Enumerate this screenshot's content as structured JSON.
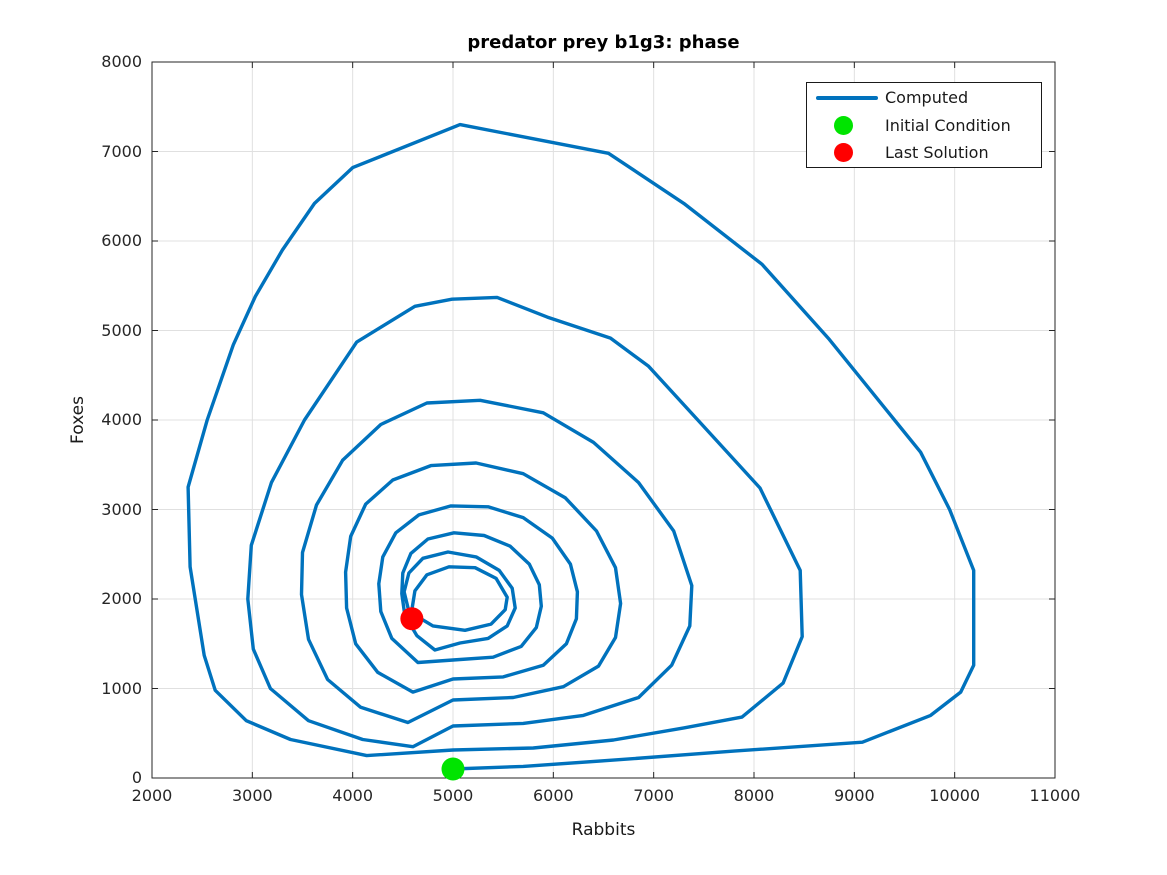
{
  "figure": {
    "background": "#ffffff"
  },
  "chart_data": {
    "type": "line",
    "subtype": "phase-portrait",
    "title": "predator prey b1g3: phase",
    "xlabel": "Rabbits",
    "ylabel": "Foxes",
    "xlim": [
      2000,
      11000
    ],
    "ylim": [
      0,
      8000
    ],
    "x_ticks": [
      2000,
      3000,
      4000,
      5000,
      6000,
      7000,
      8000,
      9000,
      10000,
      11000
    ],
    "x_tick_labels": [
      "2000",
      "3000",
      "4000",
      "5000",
      "6000",
      "7000",
      "8000",
      "9000",
      "10000",
      "11000"
    ],
    "y_ticks": [
      0,
      1000,
      2000,
      3000,
      4000,
      5000,
      6000,
      7000,
      8000
    ],
    "y_tick_labels": [
      "0",
      "1000",
      "2000",
      "3000",
      "4000",
      "5000",
      "6000",
      "7000",
      "8000"
    ],
    "grid": true,
    "grid_color": "#e0e0e0",
    "axis_color": "#262626",
    "legend": {
      "position": "top-right",
      "entries": [
        {
          "label": "Computed",
          "type": "line",
          "color": "#0072BD"
        },
        {
          "label": "Initial Condition",
          "type": "marker",
          "color": "#00E400"
        },
        {
          "label": "Last Solution",
          "type": "marker",
          "color": "#FF0000"
        }
      ]
    },
    "series": [
      {
        "name": "Computed",
        "color": "#0072BD",
        "line_width": 3.4,
        "points": [
          [
            5000,
            100
          ],
          [
            5700,
            130
          ],
          [
            6600,
            200
          ],
          [
            7800,
            300
          ],
          [
            9080,
            400
          ],
          [
            9760,
            700
          ],
          [
            10060,
            960
          ],
          [
            10190,
            1260
          ],
          [
            10190,
            2320
          ],
          [
            9950,
            3000
          ],
          [
            9660,
            3640
          ],
          [
            9400,
            4000
          ],
          [
            8750,
            4900
          ],
          [
            8080,
            5740
          ],
          [
            7300,
            6420
          ],
          [
            6550,
            6980
          ],
          [
            5070,
            7300
          ],
          [
            4000,
            6820
          ],
          [
            3620,
            6420
          ],
          [
            3300,
            5900
          ],
          [
            3030,
            5380
          ],
          [
            2810,
            4840
          ],
          [
            2550,
            4000
          ],
          [
            2360,
            3250
          ],
          [
            2380,
            2360
          ],
          [
            2520,
            1370
          ],
          [
            2630,
            980
          ],
          [
            2940,
            640
          ],
          [
            3380,
            430
          ],
          [
            4140,
            250
          ],
          [
            5000,
            313
          ],
          [
            5800,
            335
          ],
          [
            6600,
            425
          ],
          [
            7300,
            560
          ],
          [
            7880,
            680
          ],
          [
            8290,
            1060
          ],
          [
            8480,
            1580
          ],
          [
            8460,
            2320
          ],
          [
            8060,
            3240
          ],
          [
            7440,
            4000
          ],
          [
            6950,
            4600
          ],
          [
            6570,
            4915
          ],
          [
            5940,
            5150
          ],
          [
            5440,
            5370
          ],
          [
            4990,
            5350
          ],
          [
            4620,
            5270
          ],
          [
            4040,
            4870
          ],
          [
            3520,
            4000
          ],
          [
            3190,
            3300
          ],
          [
            2990,
            2600
          ],
          [
            2955,
            2000
          ],
          [
            3010,
            1440
          ],
          [
            3180,
            1000
          ],
          [
            3560,
            640
          ],
          [
            4100,
            430
          ],
          [
            4600,
            350
          ],
          [
            5000,
            581
          ],
          [
            5700,
            610
          ],
          [
            6300,
            700
          ],
          [
            6850,
            900
          ],
          [
            7180,
            1260
          ],
          [
            7360,
            1700
          ],
          [
            7380,
            2150
          ],
          [
            7200,
            2760
          ],
          [
            6850,
            3300
          ],
          [
            6400,
            3750
          ],
          [
            5900,
            4080
          ],
          [
            5270,
            4220
          ],
          [
            4740,
            4190
          ],
          [
            4280,
            3950
          ],
          [
            3900,
            3550
          ],
          [
            3640,
            3050
          ],
          [
            3500,
            2520
          ],
          [
            3490,
            2050
          ],
          [
            3560,
            1550
          ],
          [
            3750,
            1100
          ],
          [
            4080,
            790
          ],
          [
            4550,
            620
          ],
          [
            5000,
            871
          ],
          [
            5600,
            900
          ],
          [
            6100,
            1020
          ],
          [
            6450,
            1250
          ],
          [
            6620,
            1570
          ],
          [
            6670,
            1950
          ],
          [
            6620,
            2350
          ],
          [
            6430,
            2760
          ],
          [
            6120,
            3130
          ],
          [
            5700,
            3400
          ],
          [
            5230,
            3520
          ],
          [
            4780,
            3490
          ],
          [
            4400,
            3330
          ],
          [
            4130,
            3060
          ],
          [
            3980,
            2700
          ],
          [
            3930,
            2300
          ],
          [
            3940,
            1900
          ],
          [
            4030,
            1500
          ],
          [
            4250,
            1180
          ],
          [
            4600,
            960
          ],
          [
            5000,
            1106
          ],
          [
            5500,
            1130
          ],
          [
            5900,
            1260
          ],
          [
            6130,
            1500
          ],
          [
            6230,
            1780
          ],
          [
            6240,
            2080
          ],
          [
            6170,
            2390
          ],
          [
            5990,
            2680
          ],
          [
            5700,
            2910
          ],
          [
            5350,
            3030
          ],
          [
            4980,
            3040
          ],
          [
            4660,
            2940
          ],
          [
            4430,
            2740
          ],
          [
            4300,
            2470
          ],
          [
            4260,
            2170
          ],
          [
            4280,
            1860
          ],
          [
            4390,
            1560
          ],
          [
            4650,
            1290
          ],
          [
            5000,
            1318
          ],
          [
            5400,
            1350
          ],
          [
            5680,
            1470
          ],
          [
            5830,
            1680
          ],
          [
            5880,
            1920
          ],
          [
            5860,
            2160
          ],
          [
            5760,
            2390
          ],
          [
            5570,
            2590
          ],
          [
            5310,
            2710
          ],
          [
            5010,
            2740
          ],
          [
            4750,
            2670
          ],
          [
            4580,
            2510
          ],
          [
            4500,
            2290
          ],
          [
            4490,
            2060
          ],
          [
            4520,
            1820
          ],
          [
            4640,
            1590
          ],
          [
            4820,
            1430
          ],
          [
            5070,
            1508
          ],
          [
            5350,
            1560
          ],
          [
            5540,
            1700
          ],
          [
            5620,
            1900
          ],
          [
            5590,
            2120
          ],
          [
            5460,
            2320
          ],
          [
            5230,
            2470
          ],
          [
            4950,
            2525
          ],
          [
            4700,
            2455
          ],
          [
            4560,
            2290
          ],
          [
            4513,
            2080
          ],
          [
            4560,
            1860
          ],
          [
            4800,
            1700
          ],
          [
            5120,
            1650
          ],
          [
            5380,
            1720
          ],
          [
            5520,
            1880
          ],
          [
            5540,
            2020
          ],
          [
            5430,
            2230
          ],
          [
            5220,
            2350
          ],
          [
            4960,
            2360
          ],
          [
            4740,
            2270
          ],
          [
            4620,
            2090
          ],
          [
            4590,
            1880
          ],
          [
            4590,
            1782
          ]
        ]
      }
    ],
    "markers": [
      {
        "name": "Initial Condition",
        "color": "#00E400",
        "point": [
          5000,
          100
        ],
        "radius": 11.5
      },
      {
        "name": "Last Solution",
        "color": "#FF0000",
        "point": [
          4590,
          1780
        ],
        "radius": 11.5
      }
    ]
  }
}
